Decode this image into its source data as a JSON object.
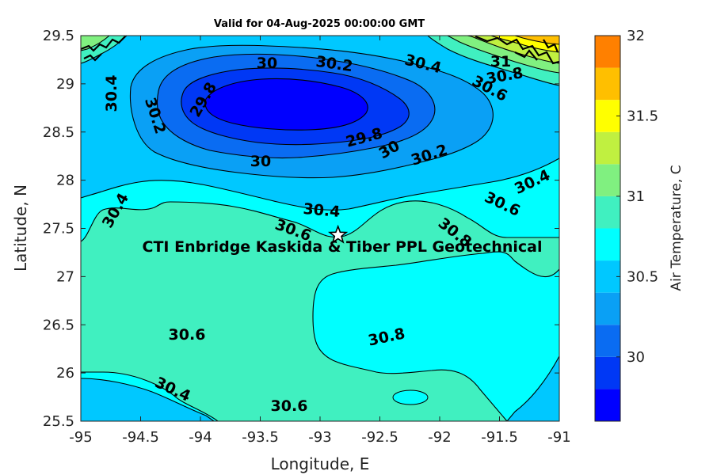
{
  "chart_data": {
    "type": "contourf",
    "title": "Valid for 04-Aug-2025 00:00:00 GMT",
    "xlabel": "Longitude, E",
    "ylabel": "Latitude, N",
    "xlim": [
      -95,
      -91
    ],
    "ylim": [
      25.5,
      29.5
    ],
    "x_ticks": [
      "-95",
      "-94.5",
      "-94",
      "-93.5",
      "-93",
      "-92.5",
      "-92",
      "-91.5",
      "-91"
    ],
    "y_ticks": [
      "25.5",
      "26",
      "26.5",
      "27",
      "27.5",
      "28",
      "28.5",
      "29",
      "29.5"
    ],
    "colorbar": {
      "label": "Air Temperature, C",
      "range": [
        29.6,
        32
      ],
      "ticks": [
        "30",
        "30.5",
        "31",
        "31.5",
        "32"
      ],
      "levels": [
        29.6,
        29.8,
        30.0,
        30.2,
        30.4,
        30.6,
        30.8,
        31.0,
        31.2,
        31.4,
        31.6,
        31.8,
        32.0
      ],
      "colors": [
        "#0000ff",
        "#0038f5",
        "#0a6cf2",
        "#0aa0f5",
        "#00c8ff",
        "#00ffff",
        "#40f0c0",
        "#80f080",
        "#c0f040",
        "#ffff00",
        "#ffbf00",
        "#ff8000",
        "#ff4000"
      ]
    },
    "contour_labels": [
      "30",
      "30.2",
      "30.4",
      "30.4",
      "30.2",
      "29.8",
      "29.8",
      "30",
      "30.2",
      "30",
      "31",
      "30.8",
      "30.6",
      "30.4",
      "30.6",
      "30.4",
      "30.4",
      "30.6",
      "30.8",
      "30.6",
      "30.8",
      "30.4",
      "30.6"
    ],
    "annotation": {
      "marker": "star",
      "lon": -92.85,
      "lat": 27.43,
      "text": "CTI Enbridge  Kaskida & Tiber PPL Geotechnical"
    }
  }
}
